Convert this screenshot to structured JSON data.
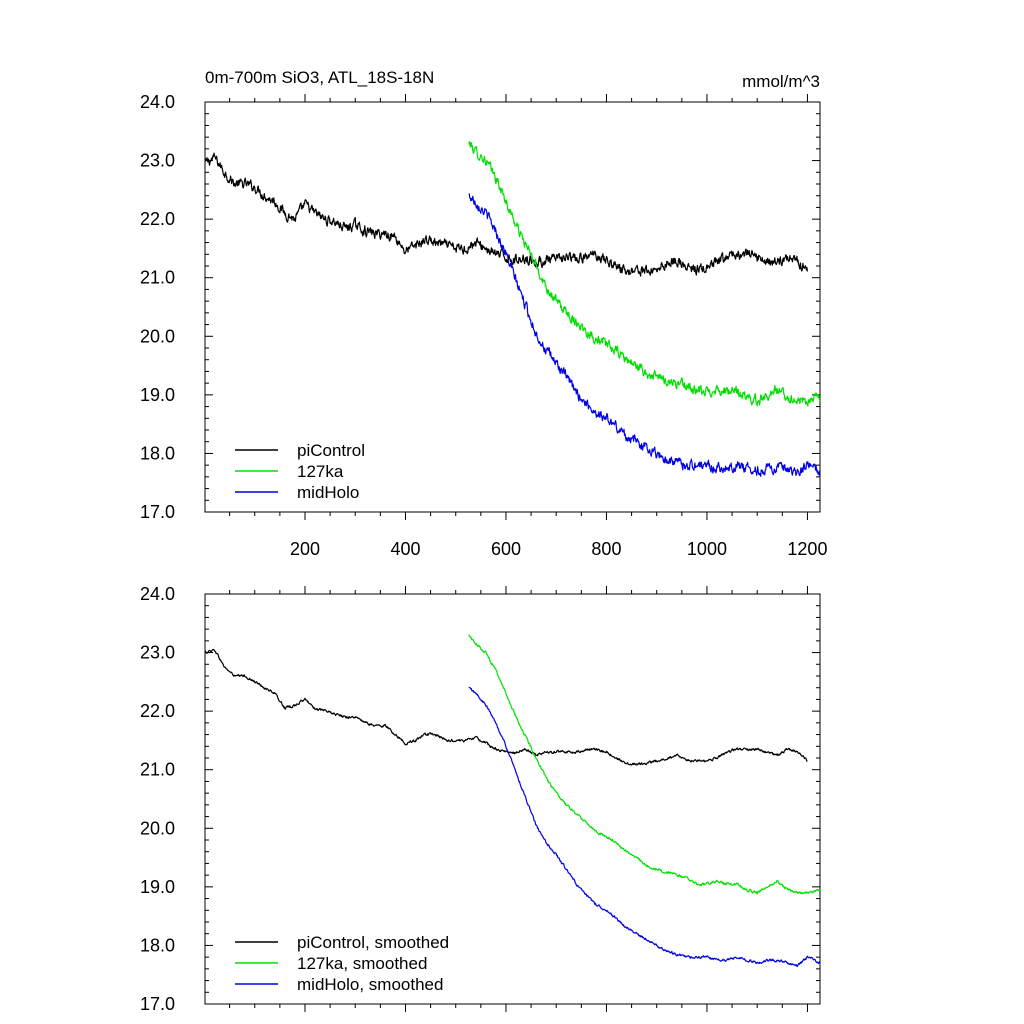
{
  "chart_data": [
    {
      "type": "line",
      "title": "0m-700m SiO3, ATL_18S-18N",
      "units": "mmol/m^3",
      "xlim": [
        1,
        1225
      ],
      "ylim": [
        17.0,
        24.0
      ],
      "xticks": [
        200,
        400,
        600,
        800,
        1000,
        1200
      ],
      "xtick_labels": [
        "200",
        "400",
        "600",
        "800",
        "1000",
        "1200"
      ],
      "yticks": [
        17,
        18,
        19,
        20,
        21,
        22,
        23,
        24
      ],
      "ytick_labels": [
        "17.0",
        "18.0",
        "19.0",
        "20.0",
        "21.0",
        "22.0",
        "23.0",
        "24.0"
      ],
      "legend_position": "bottom-left",
      "noise": 0.07,
      "series": [
        {
          "name": "piControl",
          "color": "#000000",
          "x": [
            1,
            20,
            40,
            60,
            80,
            100,
            120,
            140,
            160,
            180,
            200,
            220,
            240,
            260,
            280,
            300,
            320,
            340,
            360,
            380,
            400,
            420,
            440,
            460,
            480,
            500,
            520,
            540,
            560,
            580,
            600,
            620,
            640,
            660,
            680,
            700,
            720,
            740,
            760,
            780,
            800,
            820,
            840,
            860,
            880,
            900,
            920,
            940,
            960,
            980,
            1000,
            1020,
            1040,
            1060,
            1080,
            1100,
            1120,
            1140,
            1160,
            1180,
            1200
          ],
          "y": [
            22.95,
            23.05,
            22.8,
            22.6,
            22.6,
            22.55,
            22.4,
            22.3,
            22.1,
            22.0,
            22.25,
            22.1,
            22.0,
            21.95,
            21.85,
            21.9,
            21.8,
            21.75,
            21.75,
            21.7,
            21.45,
            21.55,
            21.65,
            21.6,
            21.55,
            21.5,
            21.5,
            21.6,
            21.5,
            21.4,
            21.35,
            21.3,
            21.35,
            21.25,
            21.3,
            21.3,
            21.35,
            21.3,
            21.35,
            21.4,
            21.3,
            21.2,
            21.1,
            21.15,
            21.1,
            21.15,
            21.25,
            21.3,
            21.15,
            21.15,
            21.15,
            21.25,
            21.35,
            21.4,
            21.4,
            21.35,
            21.3,
            21.25,
            21.35,
            21.3,
            21.15
          ]
        },
        {
          "name": "127ka",
          "color": "#00e000",
          "x": [
            526,
            540,
            560,
            580,
            600,
            620,
            640,
            660,
            680,
            700,
            720,
            740,
            760,
            780,
            800,
            820,
            840,
            860,
            880,
            900,
            920,
            940,
            960,
            980,
            1000,
            1020,
            1040,
            1060,
            1080,
            1100,
            1120,
            1140,
            1160,
            1180,
            1200,
            1225
          ],
          "y": [
            23.3,
            23.15,
            23.0,
            22.7,
            22.3,
            21.9,
            21.55,
            21.2,
            20.85,
            20.6,
            20.4,
            20.25,
            20.1,
            19.95,
            19.85,
            19.75,
            19.6,
            19.5,
            19.35,
            19.3,
            19.25,
            19.2,
            19.15,
            19.05,
            19.05,
            19.1,
            19.05,
            19.05,
            18.95,
            18.9,
            19.0,
            19.1,
            18.95,
            18.9,
            18.9,
            18.95
          ]
        },
        {
          "name": "midHolo",
          "color": "#0000e6",
          "x": [
            526,
            540,
            560,
            580,
            600,
            620,
            640,
            660,
            680,
            700,
            720,
            740,
            760,
            780,
            800,
            820,
            840,
            860,
            880,
            900,
            920,
            940,
            960,
            980,
            1000,
            1020,
            1040,
            1060,
            1080,
            1100,
            1120,
            1140,
            1160,
            1180,
            1200,
            1225
          ],
          "y": [
            22.4,
            22.3,
            22.1,
            21.8,
            21.4,
            20.95,
            20.5,
            20.05,
            19.75,
            19.55,
            19.3,
            19.05,
            18.85,
            18.7,
            18.6,
            18.45,
            18.3,
            18.2,
            18.1,
            18.0,
            17.9,
            17.85,
            17.8,
            17.8,
            17.8,
            17.75,
            17.75,
            17.8,
            17.75,
            17.7,
            17.75,
            17.75,
            17.7,
            17.65,
            17.8,
            17.7
          ]
        }
      ]
    },
    {
      "type": "line",
      "xlim": [
        1,
        1225
      ],
      "ylim": [
        17.0,
        24.0
      ],
      "xticks": [
        200,
        400,
        600,
        800,
        1000,
        1200
      ],
      "yticks": [
        17,
        18,
        19,
        20,
        21,
        22,
        23,
        24
      ],
      "ytick_labels": [
        "17.0",
        "18.0",
        "19.0",
        "20.0",
        "21.0",
        "22.0",
        "23.0",
        "24.0"
      ],
      "legend_position": "bottom-left",
      "noise": 0.018,
      "series": [
        {
          "name": "piControl, smoothed",
          "color": "#000000",
          "x": [
            1,
            20,
            40,
            60,
            80,
            100,
            120,
            140,
            160,
            180,
            200,
            220,
            240,
            260,
            280,
            300,
            320,
            340,
            360,
            380,
            400,
            420,
            440,
            460,
            480,
            500,
            520,
            540,
            560,
            580,
            600,
            620,
            640,
            660,
            680,
            700,
            720,
            740,
            760,
            780,
            800,
            820,
            840,
            860,
            880,
            900,
            920,
            940,
            960,
            980,
            1000,
            1020,
            1040,
            1060,
            1080,
            1100,
            1120,
            1140,
            1160,
            1180,
            1200
          ],
          "y": [
            23.0,
            23.05,
            22.75,
            22.6,
            22.6,
            22.5,
            22.4,
            22.3,
            22.05,
            22.1,
            22.2,
            22.05,
            22.0,
            21.95,
            21.9,
            21.9,
            21.8,
            21.75,
            21.75,
            21.6,
            21.45,
            21.5,
            21.6,
            21.6,
            21.5,
            21.5,
            21.5,
            21.55,
            21.45,
            21.35,
            21.3,
            21.3,
            21.35,
            21.25,
            21.3,
            21.3,
            21.3,
            21.3,
            21.35,
            21.35,
            21.3,
            21.2,
            21.1,
            21.1,
            21.1,
            21.15,
            21.2,
            21.25,
            21.15,
            21.15,
            21.15,
            21.2,
            21.3,
            21.35,
            21.35,
            21.35,
            21.3,
            21.25,
            21.35,
            21.3,
            21.15
          ]
        },
        {
          "name": "127ka, smoothed",
          "color": "#00e000",
          "x": [
            526,
            540,
            560,
            580,
            600,
            620,
            640,
            660,
            680,
            700,
            720,
            740,
            760,
            780,
            800,
            820,
            840,
            860,
            880,
            900,
            920,
            940,
            960,
            980,
            1000,
            1020,
            1040,
            1060,
            1080,
            1100,
            1120,
            1140,
            1160,
            1180,
            1200,
            1225
          ],
          "y": [
            23.3,
            23.15,
            23.0,
            22.7,
            22.3,
            21.9,
            21.55,
            21.2,
            20.85,
            20.6,
            20.4,
            20.25,
            20.1,
            19.95,
            19.85,
            19.75,
            19.6,
            19.5,
            19.35,
            19.3,
            19.25,
            19.2,
            19.15,
            19.05,
            19.05,
            19.1,
            19.05,
            19.05,
            18.95,
            18.9,
            19.0,
            19.1,
            18.95,
            18.9,
            18.9,
            18.95
          ]
        },
        {
          "name": "midHolo, smoothed",
          "color": "#0000e6",
          "x": [
            526,
            540,
            560,
            580,
            600,
            620,
            640,
            660,
            680,
            700,
            720,
            740,
            760,
            780,
            800,
            820,
            840,
            860,
            880,
            900,
            920,
            940,
            960,
            980,
            1000,
            1020,
            1040,
            1060,
            1080,
            1100,
            1120,
            1140,
            1160,
            1180,
            1200,
            1225
          ],
          "y": [
            22.4,
            22.3,
            22.1,
            21.8,
            21.4,
            20.95,
            20.5,
            20.05,
            19.75,
            19.55,
            19.3,
            19.05,
            18.85,
            18.7,
            18.6,
            18.45,
            18.3,
            18.2,
            18.1,
            18.0,
            17.9,
            17.85,
            17.8,
            17.8,
            17.8,
            17.75,
            17.75,
            17.8,
            17.75,
            17.7,
            17.75,
            17.75,
            17.7,
            17.65,
            17.8,
            17.7
          ]
        }
      ]
    }
  ]
}
